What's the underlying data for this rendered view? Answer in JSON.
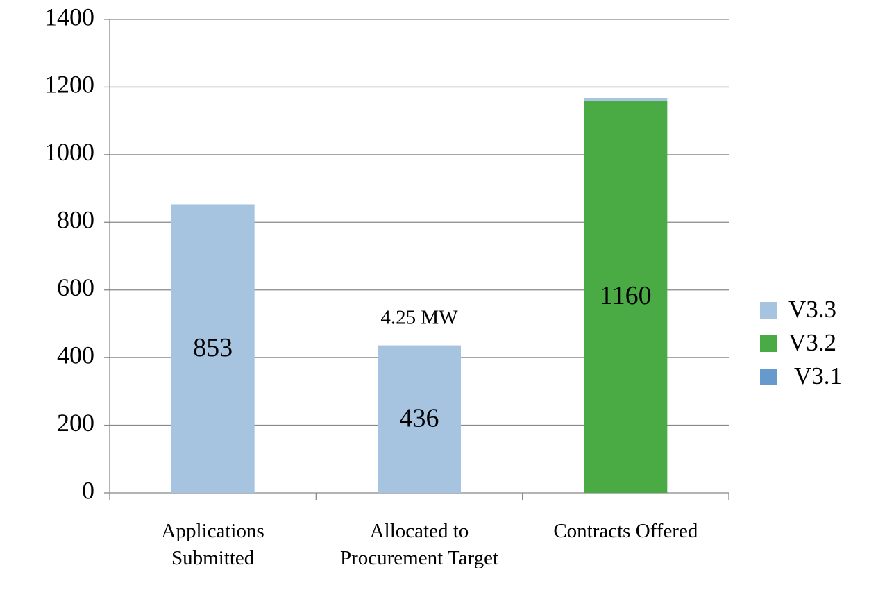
{
  "chart_data": {
    "type": "stacked_bar",
    "categories": [
      "Applications Submitted",
      "Allocated to Procurement Target",
      "Contracts Offered"
    ],
    "series": [
      {
        "name": "V3.1",
        "color": "#6699cc",
        "values": [
          0,
          0,
          0
        ]
      },
      {
        "name": "V3.2",
        "color": "#4aab45",
        "values": [
          0,
          0,
          1160
        ],
        "value_labels": [
          null,
          null,
          "1160"
        ]
      },
      {
        "name": "V3.3",
        "color": "#a6c3e0",
        "values": [
          853,
          436,
          8
        ],
        "value_labels": [
          "853",
          "436",
          null
        ]
      }
    ],
    "annotations": [
      {
        "text": "4.25 MW"
      }
    ],
    "ylim": [
      0,
      1400
    ],
    "yticks": [
      0,
      200,
      400,
      600,
      800,
      1000,
      1200,
      1400
    ],
    "grid": true,
    "legend": "right"
  }
}
